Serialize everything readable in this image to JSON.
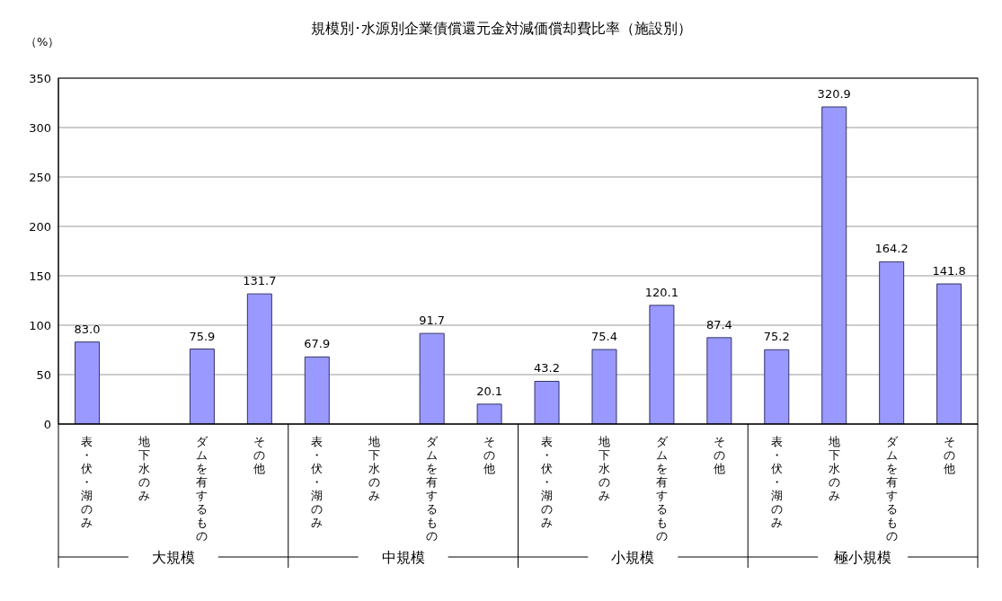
{
  "chart_data": {
    "type": "bar",
    "title": "規模別･水源別企業債償還元金対減価償却費比率（施設別）",
    "ylabel": "（%）",
    "categories": [
      "表・伏・湖のみ",
      "地下水のみ",
      "ダムを有するもの",
      "その他",
      "表・伏・湖のみ",
      "地下水のみ",
      "ダムを有するもの",
      "その他",
      "表・伏・湖のみ",
      "地下水のみ",
      "ダムを有するもの",
      "その他",
      "表・伏・湖のみ",
      "地下水のみ",
      "ダムを有するもの",
      "その他"
    ],
    "values": [
      83.0,
      null,
      75.9,
      131.7,
      67.9,
      null,
      91.7,
      20.1,
      43.2,
      75.4,
      120.1,
      87.4,
      75.2,
      320.9,
      164.2,
      141.8
    ],
    "value_labels": [
      "83.0",
      null,
      "75.9",
      "131.7",
      "67.9",
      null,
      "91.7",
      "20.1",
      "43.2",
      "75.4",
      "120.1",
      "87.4",
      "75.2",
      "320.9",
      "164.2",
      "141.8"
    ],
    "color": "#9999ff",
    "ylim": [
      0,
      350
    ],
    "yticks": [
      0,
      50,
      100,
      150,
      200,
      250,
      300,
      350
    ],
    "grid": "y",
    "annotations": [
      "大規模",
      "中規模",
      "小規模",
      "極小規模"
    ]
  }
}
